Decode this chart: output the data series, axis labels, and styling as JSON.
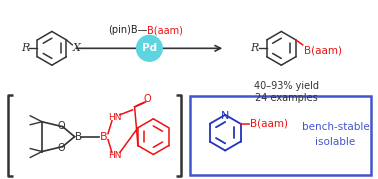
{
  "bg_color": "#ffffff",
  "top": {
    "reagent_black": "(pin)B—",
    "reagent_red": "B(aam)",
    "pd_color": "#5dd5e0",
    "pd_text": "Pd",
    "arrow_color": "#333333",
    "yield_text": "40–93% yield",
    "examples_text": "24 examples",
    "ring_color": "#333333",
    "r_color": "#333333",
    "x_color": "#333333",
    "baam_color": "#ee1111"
  },
  "bottom_left": {
    "bracket_color": "#333333",
    "pin_color": "#333333",
    "aam_color": "#ee1111"
  },
  "bottom_right": {
    "box_color": "#4455cc",
    "pyridine_color": "#2233bb",
    "baam_color": "#ee1111",
    "baam_text": "B(aam)",
    "label1": "bench-stable",
    "label2": "isolable",
    "label_color": "#4455cc"
  }
}
